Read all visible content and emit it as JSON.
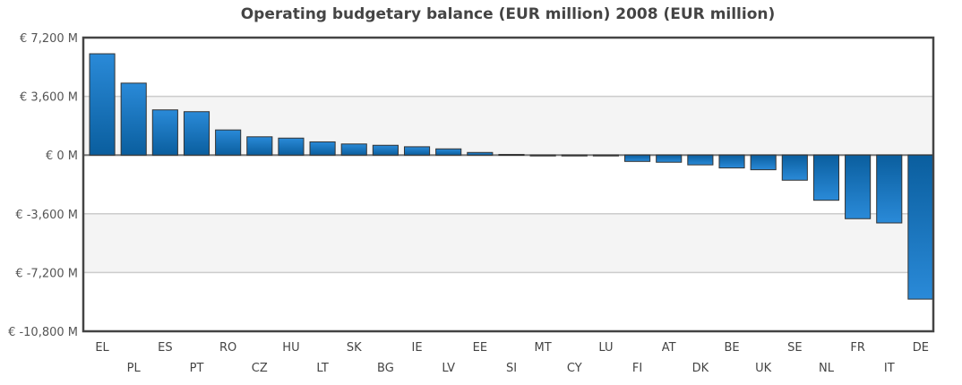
{
  "chart_data": {
    "type": "bar",
    "title": "Operating budgetary balance (EUR million) 2008 (EUR million)",
    "xlabel": "",
    "ylabel": "",
    "ylim": [
      -10800,
      7200
    ],
    "yticks": [
      7200,
      3600,
      0,
      -3600,
      -7200,
      -10800
    ],
    "ytick_labels": [
      "€ 7,200 M",
      "€ 3,600 M",
      "€ 0 M",
      "€ -3,600 M",
      "€ -7,200 M",
      "€ -10,800 M"
    ],
    "grid": true,
    "legend": "none",
    "categories": [
      "EL",
      "PL",
      "ES",
      "PT",
      "RO",
      "CZ",
      "HU",
      "LT",
      "SK",
      "BG",
      "IE",
      "LV",
      "EE",
      "SI",
      "MT",
      "CY",
      "LU",
      "FI",
      "AT",
      "DK",
      "BE",
      "UK",
      "SE",
      "NL",
      "FR",
      "IT",
      "DE"
    ],
    "values": [
      6210,
      4410,
      2770,
      2660,
      1540,
      1120,
      1040,
      810,
      680,
      600,
      510,
      380,
      160,
      40,
      -20,
      -40,
      -50,
      -390,
      -440,
      -600,
      -790,
      -900,
      -1540,
      -2770,
      -3900,
      -4160,
      -8830
    ],
    "colors": {
      "bar_light": "#2a8ad8",
      "bar_dark": "#0a5e9e",
      "bar_stroke": "#333333",
      "band": "#f4f4f4",
      "grid": "#cccccc",
      "frame": "#444444"
    }
  }
}
